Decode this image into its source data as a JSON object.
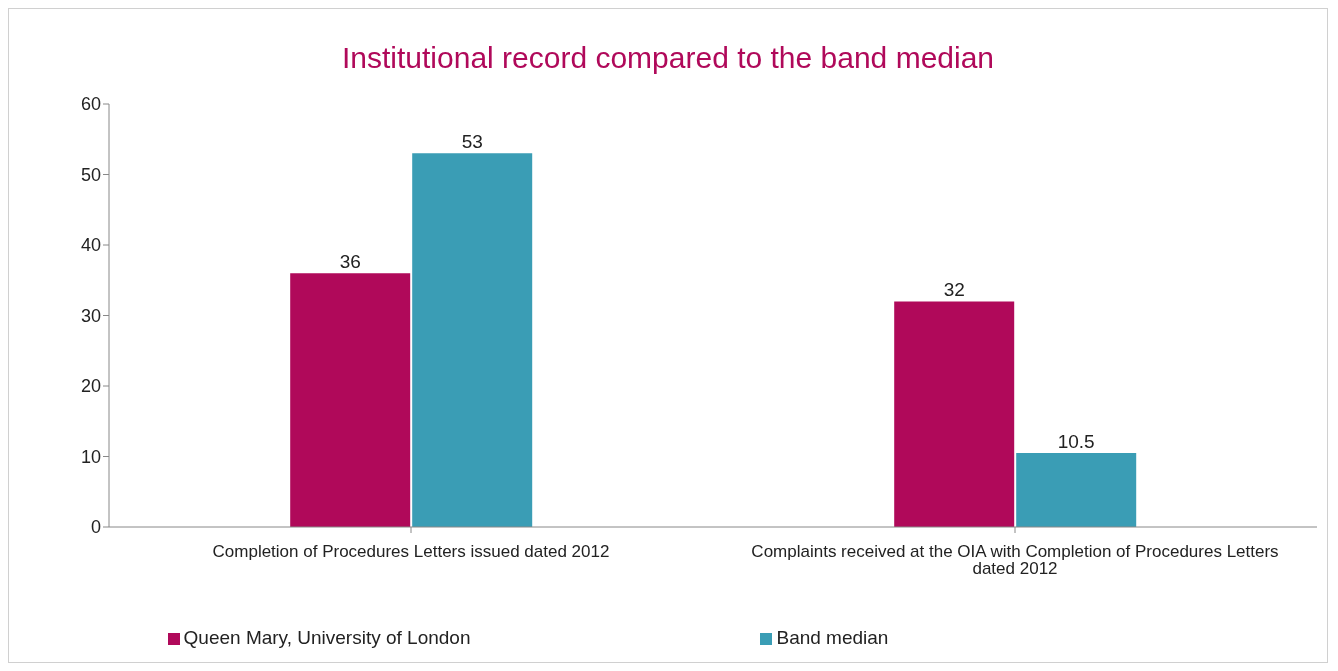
{
  "chart_data": {
    "type": "bar",
    "title": "Institutional record compared to the band median",
    "categories": [
      "Completion of Procedures Letters issued dated 2012",
      "Complaints received at the OIA with Completion of Procedures Letters dated 2012"
    ],
    "series": [
      {
        "name": "Queen Mary, University of London",
        "color": "#b0095a",
        "values": [
          36,
          32
        ]
      },
      {
        "name": "Band median",
        "color": "#3a9db5",
        "values": [
          53,
          10.5
        ]
      }
    ],
    "ylim": [
      0,
      60
    ],
    "yticks": [
      0,
      10,
      20,
      30,
      40,
      50,
      60
    ],
    "grid": false,
    "legend": "bottom",
    "data_labels": true
  }
}
